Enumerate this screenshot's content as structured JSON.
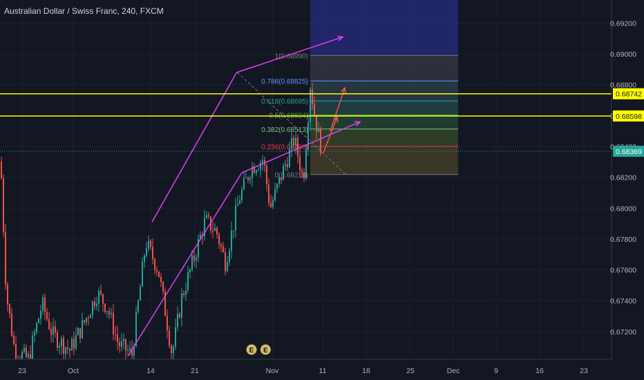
{
  "header": {
    "title": "Australian Dollar / Swiss Franc, 240, FXCM"
  },
  "colors": {
    "background": "#131722",
    "bull": "#26a69a",
    "bear": "#ef5350",
    "channel": "#e040fb",
    "level": "#ffff00",
    "current": "#26a69a",
    "text": "#b2b5be"
  },
  "chart_data": {
    "type": "candlestick",
    "title": "Australian Dollar / Swiss Franc, 240, FXCM",
    "xlabel": "",
    "ylabel": "",
    "ylim": [
      0.6702,
      0.6935
    ],
    "y_ticks": [
      "0.69200",
      "0.69000",
      "0.68800",
      "0.68600",
      "0.68400",
      "0.68200",
      "0.68000",
      "0.67800",
      "0.67600",
      "0.67400",
      "0.67200"
    ],
    "x_ticks": [
      "23",
      "Oct",
      "14",
      "21",
      "Nov",
      "11",
      "18",
      "25",
      "Dec",
      "9",
      "16",
      "23"
    ],
    "price_labels": [
      {
        "text": "0.68742",
        "value": 0.68742,
        "color": "#ffff00",
        "kind": "level"
      },
      {
        "text": "0.68598",
        "value": 0.68598,
        "color": "#ffff00",
        "kind": "level"
      },
      {
        "text": "0.68369",
        "value": 0.68369,
        "color": "#26a69a",
        "kind": "current"
      }
    ],
    "fib_levels": [
      {
        "label": "1(0.68990)",
        "value": 0.6899,
        "color": "#787b86"
      },
      {
        "label": "0.786(0.68825)",
        "value": 0.68825,
        "color": "#5b9cf6"
      },
      {
        "label": "0.618(0.68695)",
        "value": 0.68695,
        "color": "#26a69a"
      },
      {
        "label": "0.5(0.68604)",
        "value": 0.68604,
        "color": "#4caf50"
      },
      {
        "label": "0.382(0.68513)",
        "value": 0.68513,
        "color": "#81c784"
      },
      {
        "label": "0.236(0.68400)",
        "value": 0.684,
        "color": "#f23645"
      },
      {
        "label": "0(0.68218)",
        "value": 0.68218,
        "color": "#787b86"
      }
    ],
    "channel": {
      "upper": [
        {
          "x": 0.3143,
          "y": 0.6791
        },
        {
          "x": 0.4893,
          "y": 0.6888
        }
      ],
      "lower": [
        {
          "x": 0.2643,
          "y": 0.6704
        },
        {
          "x": 0.5,
          "y": 0.6823
        }
      ]
    },
    "projections": [
      {
        "from": {
          "x": 0.4911,
          "y": 0.6888
        },
        "to": {
          "x": 0.7143,
          "y": 0.6822
        }
      }
    ],
    "events": [
      {
        "label": "E",
        "x": 0.52
      },
      {
        "label": "E",
        "x": 0.549
      }
    ],
    "candles": []
  }
}
